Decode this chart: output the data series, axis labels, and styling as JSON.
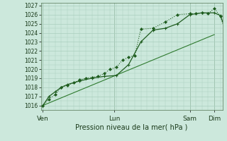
{
  "xlabel": "Pression niveau de la mer( hPa )",
  "ylim": [
    1015.5,
    1027.3
  ],
  "yticks": [
    1016,
    1017,
    1018,
    1019,
    1020,
    1021,
    1022,
    1023,
    1024,
    1025,
    1026,
    1027
  ],
  "bg_color": "#cce8dc",
  "grid_color": "#aacfbe",
  "line_color_main": "#1e5c1e",
  "line_color_straight": "#2e7a2e",
  "xtick_labels": [
    "Ven",
    "Lun",
    "Sam",
    "Dim"
  ],
  "xtick_positions": [
    0,
    35,
    72,
    84
  ],
  "xlim": [
    -1,
    88
  ],
  "series1_x": [
    0,
    3,
    6,
    9,
    12,
    15,
    18,
    21,
    24,
    27,
    30,
    33,
    36,
    39,
    42,
    45,
    48,
    54,
    60,
    66,
    72,
    75,
    78,
    81,
    84,
    87,
    90
  ],
  "series1_y": [
    1016.0,
    1016.7,
    1017.2,
    1018.0,
    1018.2,
    1018.5,
    1018.8,
    1019.0,
    1019.1,
    1019.2,
    1019.5,
    1020.0,
    1020.2,
    1021.0,
    1021.3,
    1021.5,
    1024.4,
    1024.5,
    1025.2,
    1026.0,
    1026.1,
    1026.1,
    1026.2,
    1026.1,
    1026.7,
    1025.8,
    1023.8
  ],
  "series2_x": [
    0,
    3,
    6,
    9,
    12,
    18,
    24,
    30,
    36,
    42,
    48,
    54,
    60,
    66,
    72,
    78,
    84,
    87,
    90
  ],
  "series2_y": [
    1016.0,
    1017.0,
    1017.5,
    1018.0,
    1018.3,
    1018.7,
    1019.0,
    1019.2,
    1019.3,
    1020.5,
    1023.0,
    1024.3,
    1024.5,
    1025.0,
    1026.0,
    1026.2,
    1026.2,
    1025.9,
    1024.0
  ],
  "series3_x": [
    0,
    84
  ],
  "series3_y": [
    1016.0,
    1023.8
  ]
}
